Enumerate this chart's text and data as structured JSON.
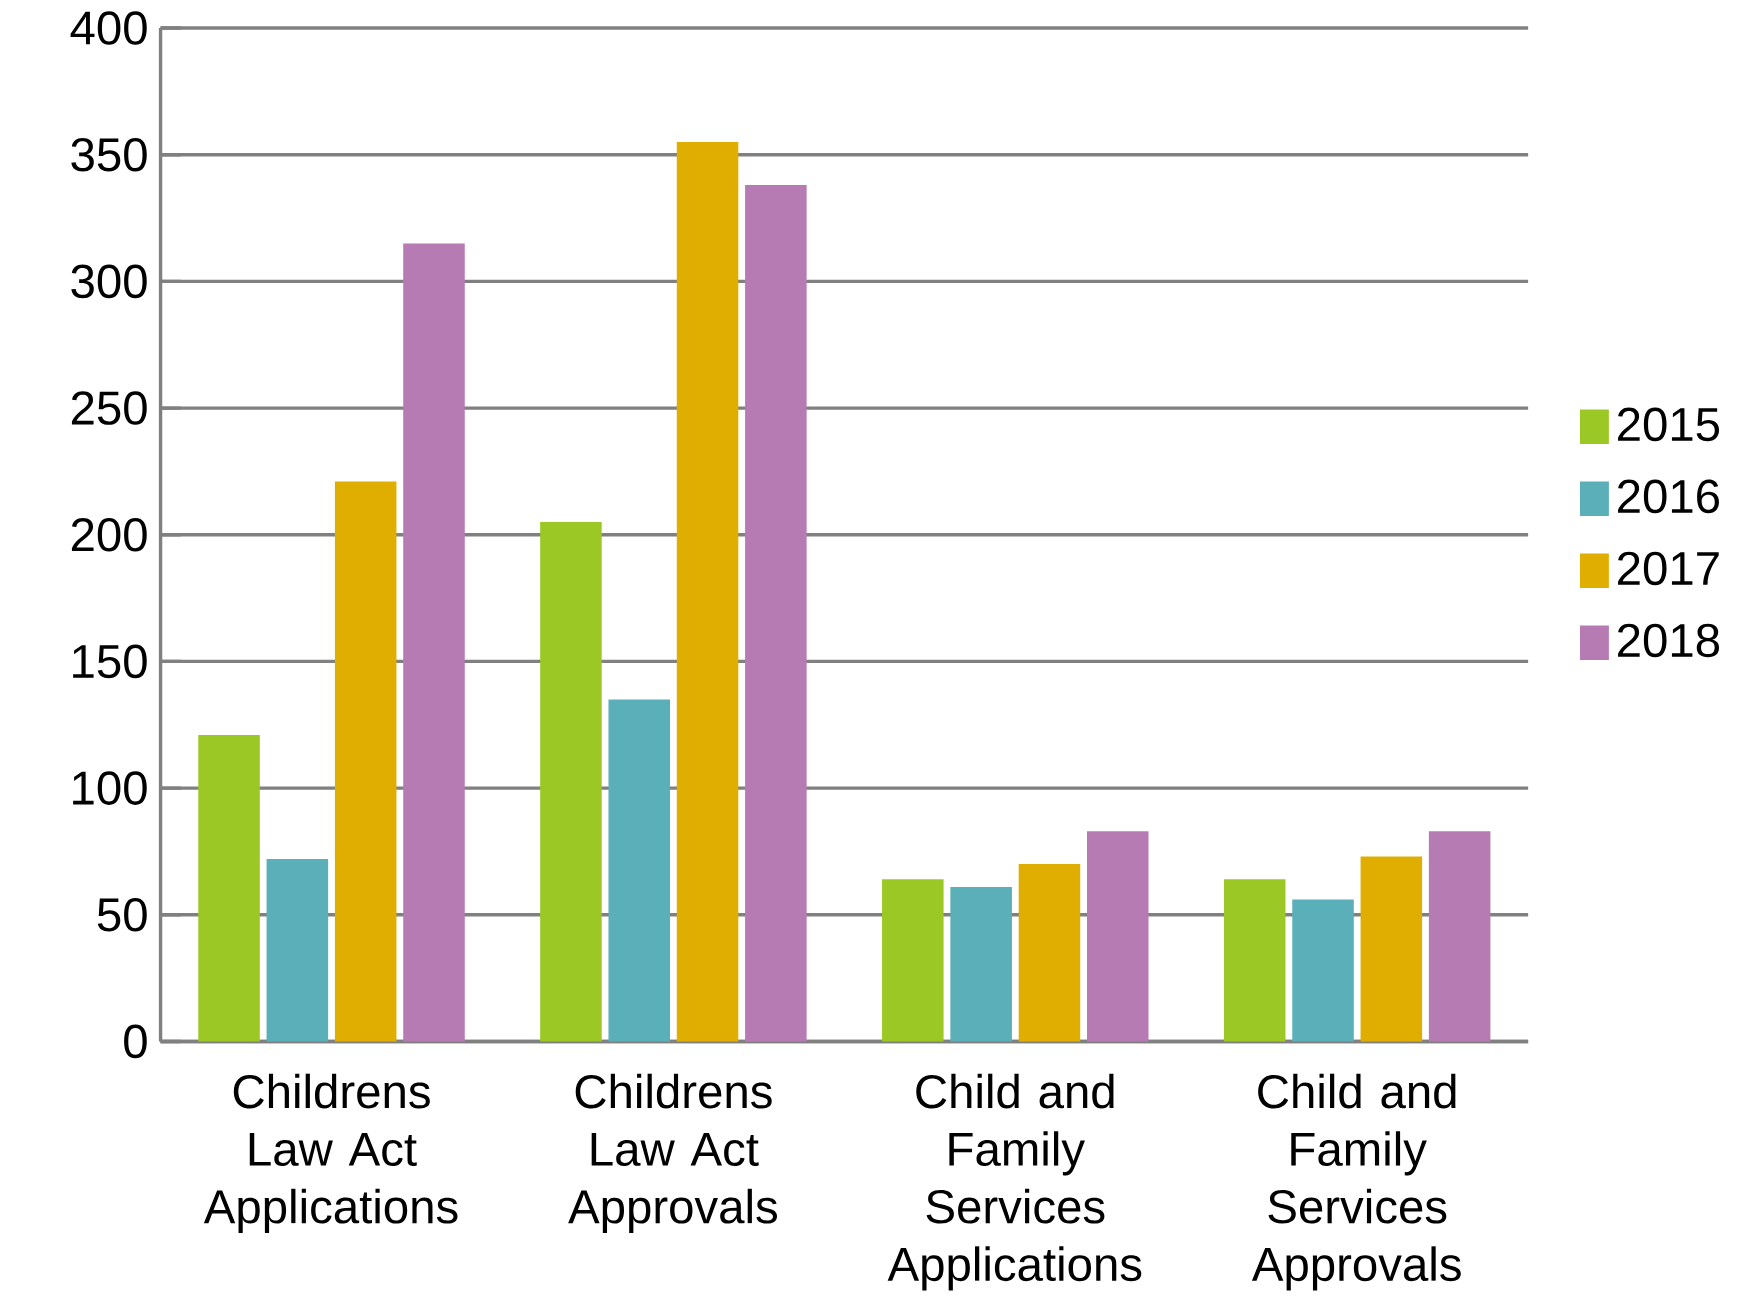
{
  "chart_data": {
    "type": "bar",
    "categories": [
      "Childrens Law Act Applications",
      "Childrens Law Act Approvals",
      "Child and Family Services Applications",
      "Child and Family Services Approvals"
    ],
    "series": [
      {
        "name": "2015",
        "color": "#9bc825",
        "values": [
          121,
          205,
          64,
          64
        ]
      },
      {
        "name": "2016",
        "color": "#5aafb8",
        "values": [
          72,
          135,
          61,
          56
        ]
      },
      {
        "name": "2017",
        "color": "#dfae00",
        "values": [
          221,
          355,
          70,
          73
        ]
      },
      {
        "name": "2018",
        "color": "#b67bb3",
        "values": [
          315,
          338,
          83,
          83
        ]
      }
    ],
    "ylim": [
      0,
      400
    ],
    "yticks": [
      0,
      50,
      100,
      150,
      200,
      250,
      300,
      350,
      400
    ],
    "grid": "y",
    "legend": "right"
  }
}
